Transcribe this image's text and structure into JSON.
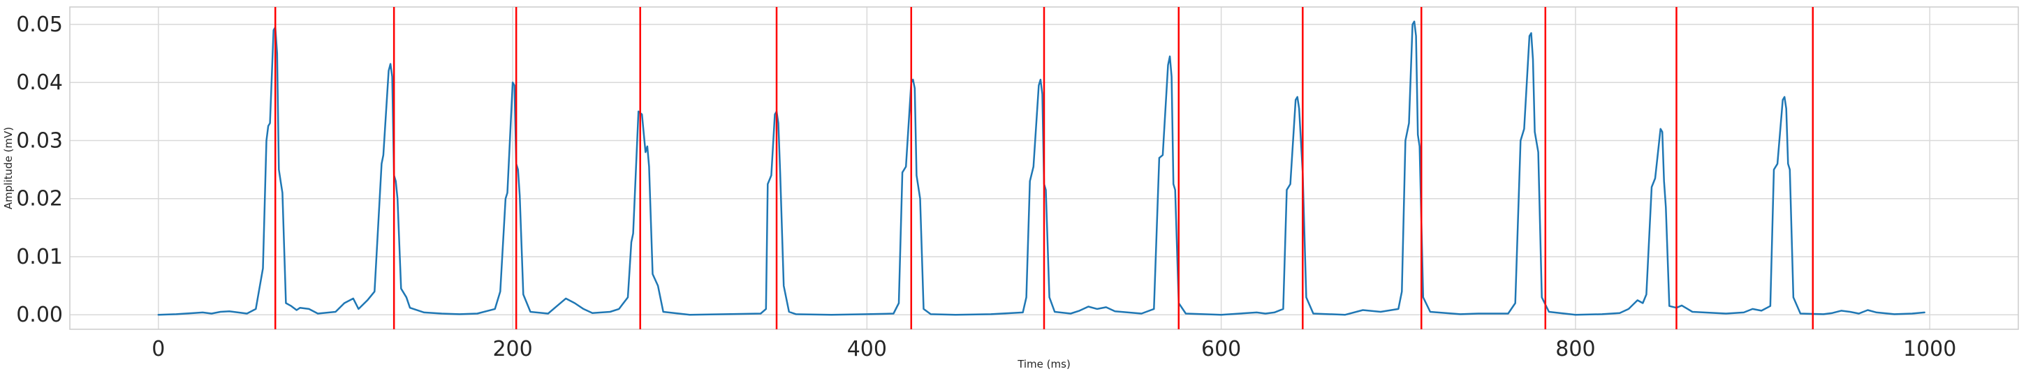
{
  "chart_data": {
    "type": "line",
    "title": "",
    "xlabel": "Time (ms)",
    "ylabel": "Amplitude (mV)",
    "xlim": [
      -50,
      1050
    ],
    "ylim": [
      -0.0025,
      0.053
    ],
    "xticks": [
      0,
      200,
      400,
      600,
      800,
      1000
    ],
    "yticks": [
      0.0,
      0.01,
      0.02,
      0.03,
      0.04,
      0.05
    ],
    "xtick_labels": [
      "0",
      "200",
      "400",
      "600",
      "800",
      "1000"
    ],
    "ytick_labels": [
      "0.00",
      "0.01",
      "0.02",
      "0.03",
      "0.04",
      "0.05"
    ],
    "grid": true,
    "colors": {
      "signal": "#1f77b4",
      "markers": "#ff0000",
      "grid": "#d9d9d9",
      "frame": "#cccccc"
    },
    "series": [
      {
        "points": [
          [
            0,
            0.0
          ],
          [
            10,
            0.0001
          ],
          [
            20,
            0.0003
          ],
          [
            25,
            0.0004
          ],
          [
            30,
            0.0002
          ],
          [
            35,
            0.0005
          ],
          [
            40,
            0.0006
          ],
          [
            45,
            0.0004
          ],
          [
            50,
            0.0002
          ],
          [
            55,
            0.001
          ],
          [
            57,
            0.0045
          ],
          [
            59,
            0.008
          ],
          [
            61,
            0.03
          ],
          [
            62,
            0.0325
          ],
          [
            63,
            0.033
          ],
          [
            65,
            0.049
          ],
          [
            66,
            0.0495
          ],
          [
            67,
            0.045
          ],
          [
            68,
            0.025
          ],
          [
            69,
            0.023
          ],
          [
            70,
            0.021
          ],
          [
            72,
            0.002
          ],
          [
            75,
            0.0015
          ],
          [
            78,
            0.0008
          ],
          [
            80,
            0.0012
          ],
          [
            85,
            0.001
          ],
          [
            90,
            0.0002
          ],
          [
            100,
            0.0005
          ],
          [
            105,
            0.002
          ],
          [
            110,
            0.0028
          ],
          [
            113,
            0.001
          ],
          [
            118,
            0.0025
          ],
          [
            122,
            0.004
          ],
          [
            126,
            0.026
          ],
          [
            127,
            0.0275
          ],
          [
            130,
            0.042
          ],
          [
            131,
            0.0432
          ],
          [
            132,
            0.041
          ],
          [
            133,
            0.024
          ],
          [
            134,
            0.023
          ],
          [
            135,
            0.02
          ],
          [
            137,
            0.0045
          ],
          [
            140,
            0.003
          ],
          [
            142,
            0.0012
          ],
          [
            150,
            0.0004
          ],
          [
            160,
            0.0002
          ],
          [
            170,
            0.0001
          ],
          [
            180,
            0.0002
          ],
          [
            190,
            0.001
          ],
          [
            193,
            0.004
          ],
          [
            196,
            0.02
          ],
          [
            197,
            0.021
          ],
          [
            200,
            0.04
          ],
          [
            201,
            0.0395
          ],
          [
            202,
            0.026
          ],
          [
            203,
            0.025
          ],
          [
            204,
            0.0205
          ],
          [
            206,
            0.0035
          ],
          [
            210,
            0.0005
          ],
          [
            220,
            0.0002
          ],
          [
            225,
            0.0015
          ],
          [
            230,
            0.0028
          ],
          [
            235,
            0.002
          ],
          [
            240,
            0.001
          ],
          [
            245,
            0.0003
          ],
          [
            255,
            0.0005
          ],
          [
            260,
            0.001
          ],
          [
            265,
            0.003
          ],
          [
            267,
            0.0125
          ],
          [
            268,
            0.014
          ],
          [
            271,
            0.035
          ],
          [
            273,
            0.0345
          ],
          [
            275,
            0.028
          ],
          [
            276,
            0.029
          ],
          [
            277,
            0.0255
          ],
          [
            279,
            0.007
          ],
          [
            282,
            0.005
          ],
          [
            285,
            0.0005
          ],
          [
            300,
            0.0
          ],
          [
            320,
            0.0001
          ],
          [
            340,
            0.0002
          ],
          [
            343,
            0.001
          ],
          [
            344,
            0.0225
          ],
          [
            346,
            0.024
          ],
          [
            348,
            0.0345
          ],
          [
            349,
            0.035
          ],
          [
            350,
            0.033
          ],
          [
            351,
            0.0245
          ],
          [
            353,
            0.005
          ],
          [
            356,
            0.0005
          ],
          [
            360,
            0.0001
          ],
          [
            380,
            0.0
          ],
          [
            400,
            0.0001
          ],
          [
            415,
            0.0002
          ],
          [
            418,
            0.002
          ],
          [
            420,
            0.0245
          ],
          [
            422,
            0.0255
          ],
          [
            425,
            0.04
          ],
          [
            426,
            0.0405
          ],
          [
            427,
            0.039
          ],
          [
            428,
            0.024
          ],
          [
            430,
            0.02
          ],
          [
            432,
            0.001
          ],
          [
            436,
            0.0001
          ],
          [
            450,
            0.0
          ],
          [
            470,
            0.0001
          ],
          [
            488,
            0.0004
          ],
          [
            490,
            0.003
          ],
          [
            492,
            0.023
          ],
          [
            494,
            0.0255
          ],
          [
            497,
            0.0395
          ],
          [
            498,
            0.0405
          ],
          [
            499,
            0.038
          ],
          [
            500,
            0.0225
          ],
          [
            501,
            0.0215
          ],
          [
            503,
            0.003
          ],
          [
            506,
            0.0005
          ],
          [
            515,
            0.0002
          ],
          [
            520,
            0.0007
          ],
          [
            525,
            0.0014
          ],
          [
            530,
            0.001
          ],
          [
            535,
            0.0013
          ],
          [
            540,
            0.0006
          ],
          [
            555,
            0.0002
          ],
          [
            562,
            0.001
          ],
          [
            565,
            0.027
          ],
          [
            567,
            0.0275
          ],
          [
            570,
            0.043
          ],
          [
            571,
            0.0445
          ],
          [
            572,
            0.041
          ],
          [
            573,
            0.0225
          ],
          [
            574,
            0.0215
          ],
          [
            576,
            0.002
          ],
          [
            580,
            0.0002
          ],
          [
            600,
            0.0
          ],
          [
            620,
            0.0004
          ],
          [
            625,
            0.0002
          ],
          [
            630,
            0.0004
          ],
          [
            635,
            0.001
          ],
          [
            637,
            0.0215
          ],
          [
            639,
            0.0225
          ],
          [
            642,
            0.037
          ],
          [
            643,
            0.0375
          ],
          [
            644,
            0.0355
          ],
          [
            646,
            0.0245
          ],
          [
            648,
            0.003
          ],
          [
            652,
            0.0002
          ],
          [
            670,
            0.0
          ],
          [
            680,
            0.0008
          ],
          [
            690,
            0.0005
          ],
          [
            700,
            0.001
          ],
          [
            702,
            0.004
          ],
          [
            704,
            0.03
          ],
          [
            706,
            0.033
          ],
          [
            708,
            0.05
          ],
          [
            709,
            0.0505
          ],
          [
            710,
            0.048
          ],
          [
            711,
            0.031
          ],
          [
            712,
            0.029
          ],
          [
            714,
            0.003
          ],
          [
            718,
            0.0005
          ],
          [
            735,
            0.0001
          ],
          [
            745,
            0.0002
          ],
          [
            762,
            0.0002
          ],
          [
            766,
            0.002
          ],
          [
            769,
            0.03
          ],
          [
            771,
            0.032
          ],
          [
            774,
            0.048
          ],
          [
            775,
            0.0485
          ],
          [
            776,
            0.044
          ],
          [
            777,
            0.0315
          ],
          [
            779,
            0.028
          ],
          [
            781,
            0.003
          ],
          [
            785,
            0.0005
          ],
          [
            800,
            0.0
          ],
          [
            815,
            0.0001
          ],
          [
            825,
            0.0003
          ],
          [
            830,
            0.001
          ],
          [
            835,
            0.0025
          ],
          [
            838,
            0.002
          ],
          [
            840,
            0.0035
          ],
          [
            843,
            0.022
          ],
          [
            845,
            0.0235
          ],
          [
            848,
            0.032
          ],
          [
            849,
            0.0315
          ],
          [
            850,
            0.023
          ],
          [
            851,
            0.0185
          ],
          [
            853,
            0.0015
          ],
          [
            857,
            0.0012
          ],
          [
            860,
            0.0016
          ],
          [
            866,
            0.0005
          ],
          [
            885,
            0.0002
          ],
          [
            895,
            0.0004
          ],
          [
            900,
            0.001
          ],
          [
            905,
            0.0007
          ],
          [
            910,
            0.0015
          ],
          [
            912,
            0.025
          ],
          [
            914,
            0.026
          ],
          [
            917,
            0.037
          ],
          [
            918,
            0.0375
          ],
          [
            919,
            0.0355
          ],
          [
            920,
            0.026
          ],
          [
            921,
            0.025
          ],
          [
            923,
            0.003
          ],
          [
            927,
            0.0002
          ],
          [
            940,
            0.0001
          ],
          [
            945,
            0.0003
          ],
          [
            950,
            0.0007
          ],
          [
            955,
            0.0005
          ],
          [
            960,
            0.0002
          ],
          [
            965,
            0.0008
          ],
          [
            970,
            0.0004
          ],
          [
            980,
            0.0001
          ],
          [
            990,
            0.0002
          ],
          [
            997,
            0.0004
          ]
        ]
      }
    ],
    "vlines": [
      66,
      133,
      202,
      272,
      349,
      425,
      500,
      576,
      646,
      713,
      783,
      857,
      934
    ]
  }
}
